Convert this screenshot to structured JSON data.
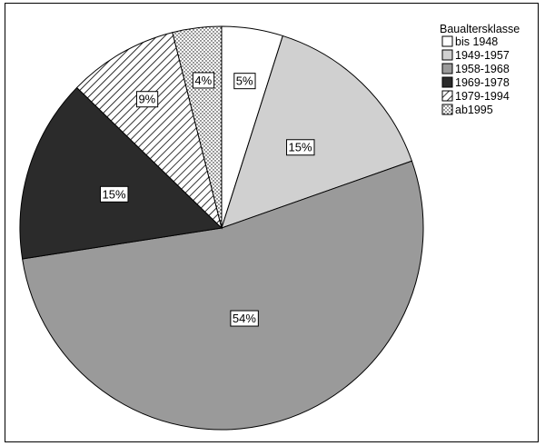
{
  "chart_data": {
    "type": "pie",
    "legend_title": "Baualtersklasse",
    "legend_position": "top-right",
    "start_angle_deg": 0,
    "direction": "clockwise",
    "slices": [
      {
        "label": "bis 1948",
        "value": 5,
        "data_label": "5%",
        "fill": "#ffffff",
        "pattern": "none"
      },
      {
        "label": "1949-1957",
        "value": 15,
        "data_label": "15%",
        "fill": "#d0d0d0",
        "pattern": "none"
      },
      {
        "label": "1958-1968",
        "value": 54,
        "data_label": "54%",
        "fill": "#9a9a9a",
        "pattern": "none"
      },
      {
        "label": "1969-1978",
        "value": 15,
        "data_label": "15%",
        "fill": "#2b2b2b",
        "pattern": "none"
      },
      {
        "label": "1979-1994",
        "value": 9,
        "data_label": "9%",
        "fill": "#ffffff",
        "pattern": "diagonal-hatch"
      },
      {
        "label": "ab1995",
        "value": 4,
        "data_label": "4%",
        "fill": "#ffffff",
        "pattern": "dots"
      }
    ]
  }
}
